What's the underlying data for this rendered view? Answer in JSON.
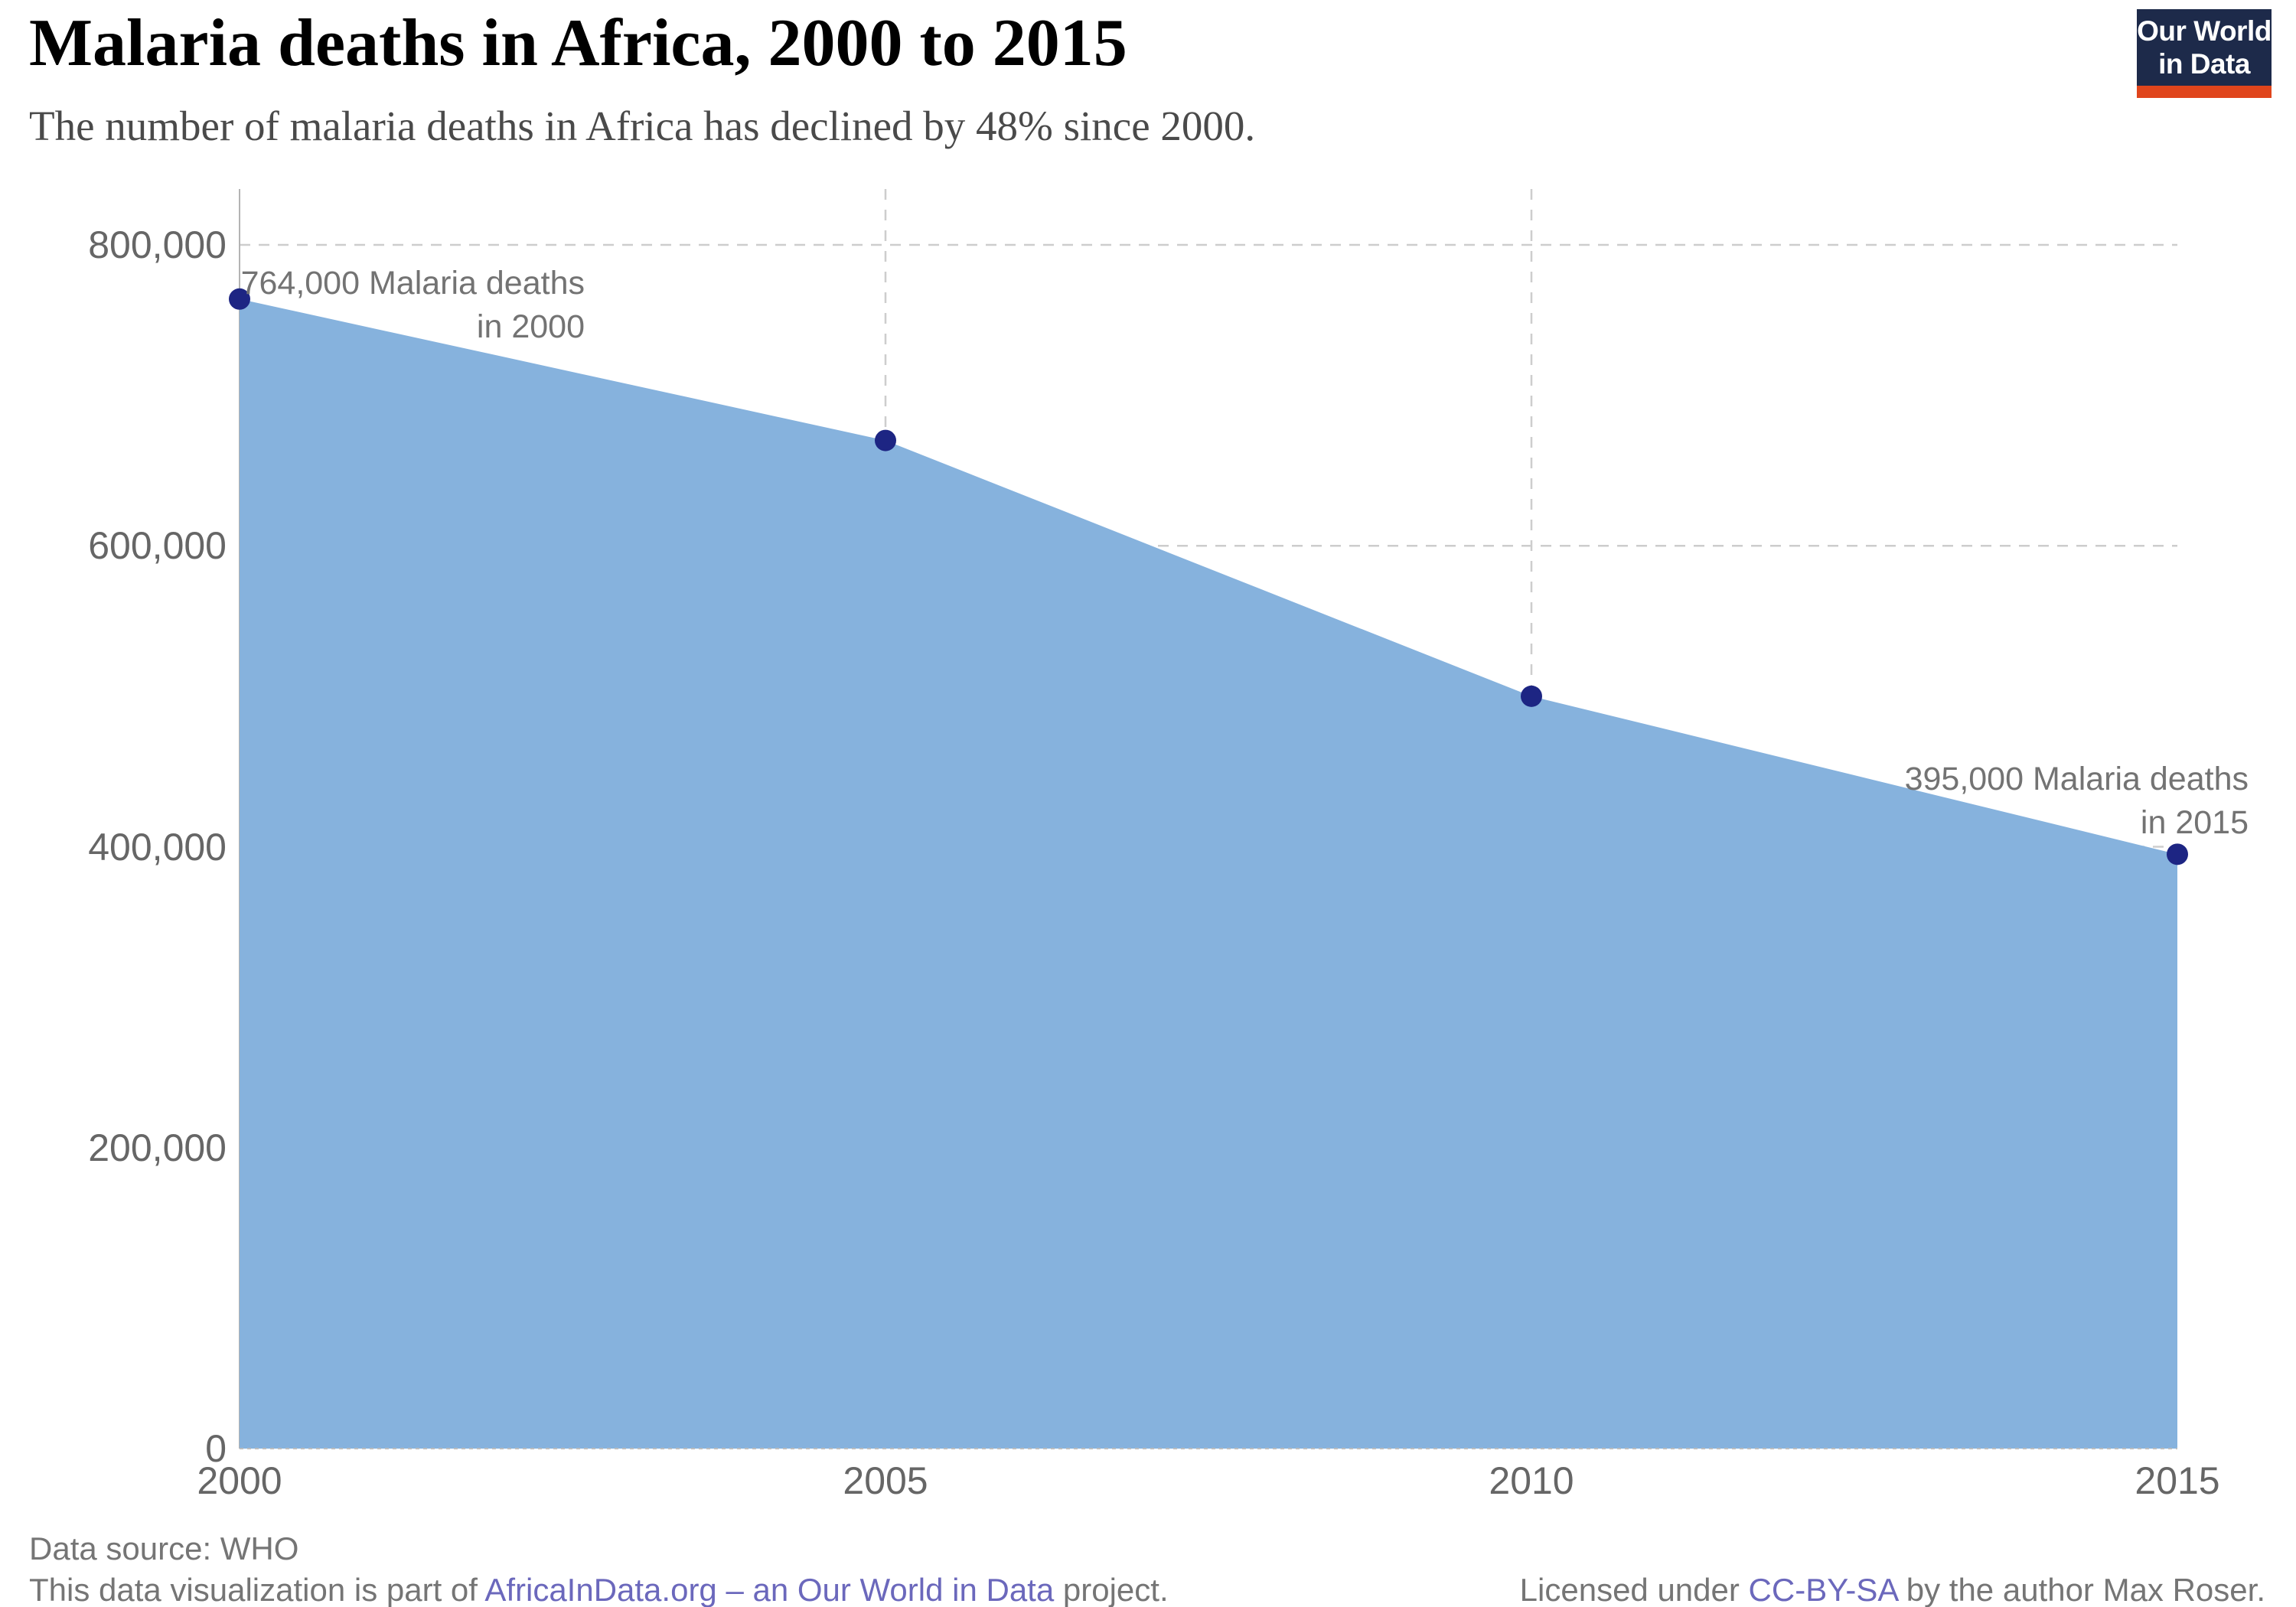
{
  "header": {
    "title": "Malaria deaths in Africa, 2000 to 2015",
    "subtitle": "The number of malaria deaths in Africa has declined by 48% since 2000.",
    "logo": {
      "line1": "Our World",
      "line2": "in Data",
      "bg_color": "#1d2a4a",
      "stripe_color": "#e0451c"
    }
  },
  "chart_data": {
    "type": "area",
    "title": "Malaria deaths in Africa, 2000 to 2015",
    "xlabel": "",
    "ylabel": "",
    "x": [
      2000,
      2005,
      2010,
      2015
    ],
    "series": [
      {
        "name": "Malaria deaths",
        "values": [
          764000,
          670000,
          500000,
          395000
        ]
      }
    ],
    "xlim": [
      2000,
      2015
    ],
    "ylim": [
      0,
      800000
    ],
    "yticks": [
      {
        "value": 0,
        "label": "0"
      },
      {
        "value": 200000,
        "label": "200,000"
      },
      {
        "value": 400000,
        "label": "400,000"
      },
      {
        "value": 600000,
        "label": "600,000"
      },
      {
        "value": 800000,
        "label": "800,000"
      }
    ],
    "xticks": [
      {
        "value": 2000,
        "label": "2000"
      },
      {
        "value": 2005,
        "label": "2005"
      },
      {
        "value": 2010,
        "label": "2010"
      },
      {
        "value": 2015,
        "label": "2015"
      }
    ],
    "grid": {
      "horizontal": "dashed",
      "vertical_years": [
        2005,
        2010
      ]
    },
    "legend": "none",
    "annotations": [
      {
        "line1": "764,000 Malaria deaths",
        "line2": "in 2000",
        "year": 2000
      },
      {
        "line1": "395,000 Malaria deaths",
        "line2": "in 2015",
        "year": 2015
      }
    ],
    "colors": {
      "area_fill": "#86b2dd",
      "point": "#1d2583",
      "gridline": "#cdcdcd",
      "axis_line": "#b3b3b3",
      "tick_label": "#666666",
      "annotation_text": "#737373"
    }
  },
  "footer": {
    "source_line": "Data source: WHO",
    "project_prefix": "This data visualization is part of ",
    "project_link": "AfricaInData.org – an Our World in Data",
    "project_suffix": " project.",
    "license_prefix": "Licensed under ",
    "license_link": "CC-BY-SA",
    "license_suffix": " by the author Max Roser.",
    "link_color": "#6b68bc"
  }
}
